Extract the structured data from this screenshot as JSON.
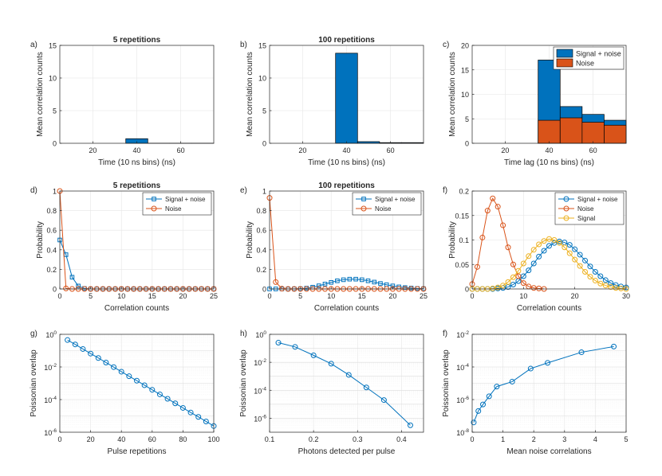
{
  "colors": {
    "blue": "#0072BD",
    "orange": "#D95319",
    "yellow": "#EDB120",
    "axis": "#262626",
    "grid": "#e6e6e6"
  },
  "chart_data": [
    {
      "id": "a",
      "panel_label": "a)",
      "type": "bar",
      "title": "5 repetitions",
      "xlabel": "Time (10 ns bins) (ns)",
      "ylabel": "Mean correlation counts",
      "xlim": [
        5,
        75
      ],
      "ylim": [
        0,
        15
      ],
      "xticks": [
        20,
        40,
        60
      ],
      "yticks": [
        0,
        5,
        10,
        15
      ],
      "bins": [
        {
          "x0": 35,
          "x1": 45,
          "values": [
            0.7
          ]
        },
        {
          "x0": 45,
          "x1": 55,
          "values": [
            0.01
          ]
        },
        {
          "x0": 55,
          "x1": 65,
          "values": [
            0.01
          ]
        },
        {
          "x0": 65,
          "x1": 75,
          "values": [
            0.01
          ]
        }
      ],
      "series": [
        {
          "name": "Signal + noise",
          "color": "#0072BD"
        }
      ]
    },
    {
      "id": "b",
      "panel_label": "b)",
      "type": "bar",
      "title": "100 repetitions",
      "xlabel": "Time (10 ns bins) (ns)",
      "ylabel": "Mean correlation counts",
      "xlim": [
        5,
        75
      ],
      "ylim": [
        0,
        15
      ],
      "xticks": [
        20,
        40,
        60
      ],
      "yticks": [
        0,
        5,
        10,
        15
      ],
      "bins": [
        {
          "x0": 35,
          "x1": 45,
          "values": [
            13.8
          ]
        },
        {
          "x0": 45,
          "x1": 55,
          "values": [
            0.25
          ]
        },
        {
          "x0": 55,
          "x1": 65,
          "values": [
            0.1
          ]
        },
        {
          "x0": 65,
          "x1": 75,
          "values": [
            0.1
          ]
        }
      ],
      "series": [
        {
          "name": "Signal + noise",
          "color": "#0072BD"
        }
      ]
    },
    {
      "id": "c",
      "panel_label": "c)",
      "type": "bar",
      "title": "",
      "xlabel": "Time lag (10 ns bins) (ns)",
      "ylabel": "Mean correlation counts",
      "xlim": [
        5,
        75
      ],
      "ylim": [
        0,
        20
      ],
      "xticks": [
        20,
        40,
        60
      ],
      "yticks": [
        0,
        5,
        10,
        15,
        20
      ],
      "legend_position": "top-right",
      "bins": [
        {
          "x0": 35,
          "x1": 45,
          "values": [
            17,
            4.7
          ]
        },
        {
          "x0": 45,
          "x1": 55,
          "values": [
            7.5,
            5.2
          ]
        },
        {
          "x0": 55,
          "x1": 65,
          "values": [
            5.9,
            4.3
          ]
        },
        {
          "x0": 65,
          "x1": 75,
          "values": [
            4.7,
            3.7
          ]
        }
      ],
      "series": [
        {
          "name": "Signal + noise",
          "color": "#0072BD"
        },
        {
          "name": "Noise",
          "color": "#D95319"
        }
      ]
    },
    {
      "id": "d",
      "panel_label": "d)",
      "type": "line",
      "title": "5 repetitions",
      "xlabel": "Correlation counts",
      "ylabel": "Probability",
      "xlim": [
        0,
        25
      ],
      "ylim": [
        0,
        1
      ],
      "xticks": [
        0,
        5,
        10,
        15,
        20,
        25
      ],
      "yticks": [
        0,
        0.2,
        0.4,
        0.6,
        0.8,
        1
      ],
      "legend_position": "top-right",
      "series": [
        {
          "name": "Signal + noise",
          "color": "#0072BD",
          "marker": "square",
          "x": [
            0,
            1,
            2,
            3,
            4,
            5,
            6,
            7,
            8,
            9,
            10,
            11,
            12,
            13,
            14,
            15,
            16,
            17,
            18,
            19,
            20,
            21,
            22,
            23,
            24,
            25
          ],
          "y": [
            0.5,
            0.35,
            0.12,
            0.03,
            0.005,
            0,
            0,
            0,
            0,
            0,
            0,
            0,
            0,
            0,
            0,
            0,
            0,
            0,
            0,
            0,
            0,
            0,
            0,
            0,
            0,
            0
          ]
        },
        {
          "name": "Noise",
          "color": "#D95319",
          "marker": "circle",
          "x": [
            0,
            1,
            2,
            3,
            4,
            5,
            6,
            7,
            8,
            9,
            10,
            11,
            12,
            13,
            14,
            15,
            16,
            17,
            18,
            19,
            20,
            21,
            22,
            23,
            24,
            25
          ],
          "y": [
            1,
            0.005,
            0,
            0,
            0,
            0,
            0,
            0,
            0,
            0,
            0,
            0,
            0,
            0,
            0,
            0,
            0,
            0,
            0,
            0,
            0,
            0,
            0,
            0,
            0,
            0
          ]
        }
      ]
    },
    {
      "id": "e",
      "panel_label": "e)",
      "type": "line",
      "title": "100 repetitions",
      "xlabel": "Correlation counts",
      "ylabel": "Probability",
      "xlim": [
        0,
        25
      ],
      "ylim": [
        0,
        1
      ],
      "xticks": [
        0,
        5,
        10,
        15,
        20,
        25
      ],
      "yticks": [
        0,
        0.2,
        0.4,
        0.6,
        0.8,
        1
      ],
      "legend_position": "top-right",
      "series": [
        {
          "name": "Signal + noise",
          "color": "#0072BD",
          "marker": "square",
          "x": [
            0,
            1,
            2,
            3,
            4,
            5,
            6,
            7,
            8,
            9,
            10,
            11,
            12,
            13,
            14,
            15,
            16,
            17,
            18,
            19,
            20,
            21,
            22,
            23,
            24,
            25
          ],
          "y": [
            0,
            0,
            0,
            0,
            0.001,
            0.003,
            0.008,
            0.018,
            0.032,
            0.05,
            0.067,
            0.083,
            0.094,
            0.1,
            0.1,
            0.094,
            0.083,
            0.07,
            0.056,
            0.043,
            0.031,
            0.021,
            0.014,
            0.009,
            0.005,
            0.003
          ]
        },
        {
          "name": "Noise",
          "color": "#D95319",
          "marker": "circle",
          "x": [
            0,
            1,
            2,
            3,
            4,
            5,
            6,
            7,
            8,
            9,
            10,
            11,
            12,
            13,
            14,
            15,
            16,
            17,
            18,
            19,
            20,
            21,
            22,
            23,
            24,
            25
          ],
          "y": [
            0.93,
            0.07,
            0.003,
            0,
            0,
            0,
            0,
            0,
            0,
            0,
            0,
            0,
            0,
            0,
            0,
            0,
            0,
            0,
            0,
            0,
            0,
            0,
            0,
            0,
            0,
            0
          ]
        }
      ]
    },
    {
      "id": "f1",
      "panel_label": "f)",
      "type": "line",
      "title": "",
      "xlabel": "Correlation counts",
      "ylabel": "Probability",
      "xlim": [
        0,
        30
      ],
      "ylim": [
        0,
        0.2
      ],
      "xticks": [
        0,
        10,
        20,
        30
      ],
      "yticks": [
        0,
        0.05,
        0.1,
        0.15,
        0.2
      ],
      "legend_position": "top-right",
      "series": [
        {
          "name": "Signal + noise",
          "color": "#0072BD",
          "marker": "circle",
          "x": [
            0,
            1,
            2,
            3,
            4,
            5,
            6,
            7,
            8,
            9,
            10,
            11,
            12,
            13,
            14,
            15,
            16,
            17,
            18,
            19,
            20,
            21,
            22,
            23,
            24,
            25,
            26,
            27,
            28,
            29,
            30
          ],
          "y": [
            0,
            0,
            0,
            0,
            0,
            0.001,
            0.002,
            0.004,
            0.009,
            0.016,
            0.026,
            0.038,
            0.052,
            0.066,
            0.078,
            0.088,
            0.094,
            0.097,
            0.095,
            0.09,
            0.081,
            0.07,
            0.058,
            0.046,
            0.035,
            0.026,
            0.018,
            0.012,
            0.008,
            0.005,
            0.003
          ]
        },
        {
          "name": "Noise",
          "color": "#D95319",
          "marker": "circle",
          "x": [
            0,
            1,
            2,
            3,
            4,
            5,
            6,
            7,
            8,
            9,
            10,
            11,
            12,
            13,
            14
          ],
          "y": [
            0.01,
            0.045,
            0.105,
            0.16,
            0.185,
            0.168,
            0.13,
            0.085,
            0.05,
            0.026,
            0.012,
            0.005,
            0.002,
            0.001,
            0
          ]
        },
        {
          "name": "Signal",
          "color": "#EDB120",
          "marker": "circle",
          "x": [
            0,
            1,
            2,
            3,
            4,
            5,
            6,
            7,
            8,
            9,
            10,
            11,
            12,
            13,
            14,
            15,
            16,
            17,
            18,
            19,
            20,
            21,
            22,
            23,
            24,
            25,
            26,
            27,
            28,
            29,
            30
          ],
          "y": [
            0,
            0,
            0,
            0,
            0.001,
            0.003,
            0.007,
            0.014,
            0.024,
            0.037,
            0.052,
            0.067,
            0.08,
            0.091,
            0.098,
            0.102,
            0.1,
            0.094,
            0.085,
            0.073,
            0.06,
            0.047,
            0.035,
            0.025,
            0.017,
            0.011,
            0.007,
            0.004,
            0.002,
            0.001,
            0
          ]
        }
      ]
    },
    {
      "id": "g",
      "panel_label": "g)",
      "type": "line",
      "title": "",
      "xlabel": "Pulse repetitions",
      "ylabel": "Poissonian overlap",
      "xlim": [
        0,
        100
      ],
      "ylog": true,
      "ylim_exp": [
        -6,
        0
      ],
      "xticks": [
        0,
        20,
        40,
        60,
        80,
        100
      ],
      "yticks_exp": [
        -6,
        -4,
        -2,
        0
      ],
      "series": [
        {
          "name": "Poissonian overlap",
          "color": "#0072BD",
          "marker": "circle",
          "x": [
            5,
            10,
            15,
            20,
            25,
            30,
            35,
            40,
            45,
            50,
            55,
            60,
            65,
            70,
            75,
            80,
            85,
            90,
            95,
            100
          ],
          "y_exp": [
            -0.35,
            -0.62,
            -0.9,
            -1.18,
            -1.45,
            -1.73,
            -2.01,
            -2.29,
            -2.57,
            -2.84,
            -3.12,
            -3.4,
            -3.68,
            -3.95,
            -4.23,
            -4.51,
            -4.79,
            -5.06,
            -5.34,
            -5.62
          ]
        }
      ]
    },
    {
      "id": "h",
      "panel_label": "h)",
      "type": "line",
      "title": "",
      "xlabel": "Photons detected per pulse",
      "ylabel": "Poissonian overlap",
      "xlim": [
        0.1,
        0.45
      ],
      "ylog": true,
      "ylim_exp": [
        -7,
        0
      ],
      "xticks": [
        0.1,
        0.2,
        0.3,
        0.4
      ],
      "yticks_exp": [
        -6,
        -4,
        -2,
        0
      ],
      "series": [
        {
          "name": "Poissonian overlap",
          "color": "#0072BD",
          "marker": "circle",
          "x": [
            0.12,
            0.158,
            0.2,
            0.24,
            0.28,
            0.32,
            0.36,
            0.42
          ],
          "y_exp": [
            -0.6,
            -0.9,
            -1.5,
            -2.1,
            -2.9,
            -3.8,
            -4.7,
            -6.5
          ]
        }
      ]
    },
    {
      "id": "f2",
      "panel_label": "f)",
      "type": "line",
      "title": "",
      "xlabel": "Mean noise correlations",
      "ylabel": "Poissonian overlap",
      "xlim": [
        0,
        5
      ],
      "ylog": true,
      "ylim_exp": [
        -8,
        -2
      ],
      "xticks": [
        0,
        1,
        2,
        3,
        4,
        5
      ],
      "yticks_exp": [
        -8,
        -6,
        -4,
        -2
      ],
      "series": [
        {
          "name": "Poissonian overlap",
          "color": "#0072BD",
          "marker": "circle",
          "x": [
            0.05,
            0.2,
            0.35,
            0.55,
            0.8,
            1.3,
            1.9,
            2.45,
            3.55,
            4.6
          ],
          "y_exp": [
            -7.4,
            -6.7,
            -6.3,
            -5.8,
            -5.2,
            -4.9,
            -4.1,
            -3.75,
            -3.1,
            -2.75
          ]
        }
      ]
    }
  ]
}
